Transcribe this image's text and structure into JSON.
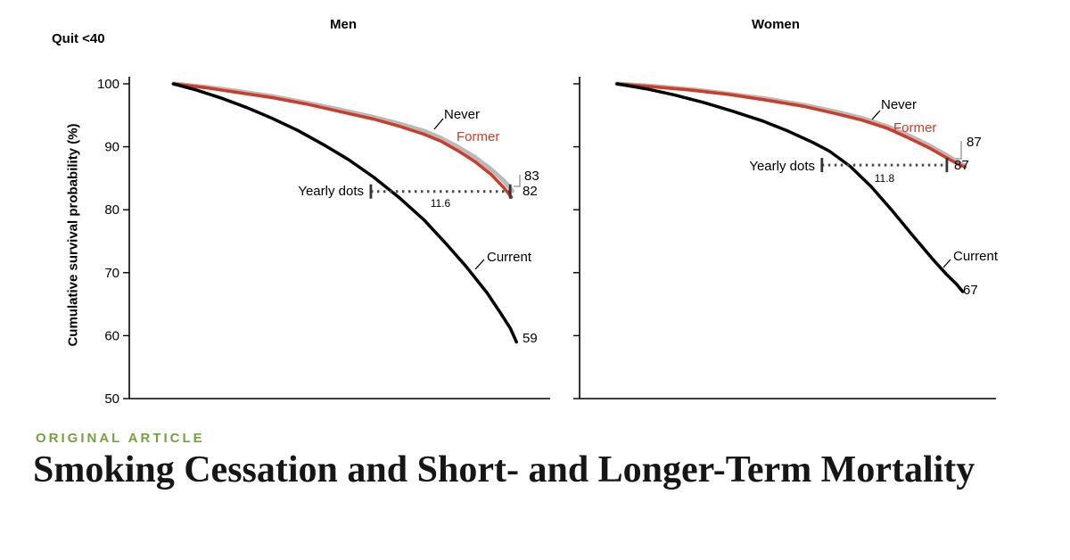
{
  "figure": {
    "subgroup_label": "Quit <40",
    "y_axis_label": "Cumulative survival probability (%)"
  },
  "article": {
    "kicker": "ORIGINAL ARTICLE",
    "title": "Smoking Cessation and Short- and Longer-Term Mortality"
  },
  "colors": {
    "former_red": "#d03a26",
    "never_gray": "#b7babc",
    "current_black": "#000000",
    "kicker_green": "#74a23e",
    "annotation_gray": "#4a4a4a"
  },
  "chart_data": [
    {
      "type": "line",
      "title": "Men",
      "xlabel": "",
      "ylabel": "Cumulative survival probability (%)",
      "ylim": [
        50,
        100
      ],
      "yticks": [
        100,
        90,
        80,
        70,
        60,
        50
      ],
      "grid": false,
      "legend_position": "inline-labels",
      "series": [
        {
          "name": "Never",
          "color": "#b7babc",
          "width": 5,
          "end_value": "83",
          "points": [
            [
              0.105,
              100
            ],
            [
              0.18,
              99.5
            ],
            [
              0.26,
              98.8
            ],
            [
              0.34,
              98.0
            ],
            [
              0.42,
              97.0
            ],
            [
              0.5,
              95.9
            ],
            [
              0.58,
              94.7
            ],
            [
              0.64,
              93.7
            ],
            [
              0.7,
              92.5
            ],
            [
              0.74,
              91.4
            ],
            [
              0.78,
              90.0
            ],
            [
              0.82,
              88.4
            ],
            [
              0.86,
              86.4
            ],
            [
              0.89,
              84.6
            ],
            [
              0.91,
              83
            ]
          ]
        },
        {
          "name": "Former",
          "color": "#d03a26",
          "width": 3.5,
          "end_value": "82",
          "points": [
            [
              0.105,
              100
            ],
            [
              0.18,
              99.4
            ],
            [
              0.26,
              98.6
            ],
            [
              0.34,
              97.8
            ],
            [
              0.42,
              96.8
            ],
            [
              0.5,
              95.6
            ],
            [
              0.58,
              94.4
            ],
            [
              0.64,
              93.3
            ],
            [
              0.7,
              92.0
            ],
            [
              0.74,
              90.9
            ],
            [
              0.78,
              89.4
            ],
            [
              0.82,
              87.7
            ],
            [
              0.86,
              85.6
            ],
            [
              0.89,
              83.5
            ],
            [
              0.908,
              82
            ]
          ]
        },
        {
          "name": "Current",
          "color": "#000000",
          "width": 3.5,
          "end_value": "59",
          "points": [
            [
              0.105,
              100
            ],
            [
              0.16,
              99.0
            ],
            [
              0.22,
              97.7
            ],
            [
              0.28,
              96.2
            ],
            [
              0.34,
              94.5
            ],
            [
              0.4,
              92.6
            ],
            [
              0.46,
              90.4
            ],
            [
              0.52,
              88.0
            ],
            [
              0.58,
              85.2
            ],
            [
              0.64,
              82.0
            ],
            [
              0.7,
              78.4
            ],
            [
              0.75,
              74.8
            ],
            [
              0.8,
              71.0
            ],
            [
              0.85,
              66.8
            ],
            [
              0.88,
              63.8
            ],
            [
              0.905,
              61.2
            ],
            [
              0.92,
              59
            ]
          ]
        }
      ],
      "annotation": {
        "label": "Yearly dots",
        "value": "11.6",
        "y_pct": 82.9,
        "x1": 0.574,
        "x2": 0.905
      }
    },
    {
      "type": "line",
      "title": "Women",
      "xlabel": "",
      "ylabel": "Cumulative survival probability (%)",
      "ylim": [
        50,
        100
      ],
      "yticks": [
        100,
        90,
        80,
        70,
        60,
        50
      ],
      "grid": false,
      "legend_position": "inline-labels",
      "series": [
        {
          "name": "Never",
          "color": "#b7babc",
          "width": 5,
          "end_value": "87",
          "points": [
            [
              0.09,
              100
            ],
            [
              0.18,
              99.6
            ],
            [
              0.27,
              99.1
            ],
            [
              0.36,
              98.4
            ],
            [
              0.45,
              97.6
            ],
            [
              0.54,
              96.6
            ],
            [
              0.62,
              95.5
            ],
            [
              0.68,
              94.5
            ],
            [
              0.74,
              93.2
            ],
            [
              0.79,
              91.8
            ],
            [
              0.84,
              90.2
            ],
            [
              0.88,
              88.7
            ],
            [
              0.91,
              87.5
            ],
            [
              0.925,
              87
            ]
          ]
        },
        {
          "name": "Former",
          "color": "#d03a26",
          "width": 3.5,
          "end_value": "87",
          "points": [
            [
              0.09,
              100
            ],
            [
              0.18,
              99.5
            ],
            [
              0.27,
              99.0
            ],
            [
              0.36,
              98.3
            ],
            [
              0.45,
              97.4
            ],
            [
              0.54,
              96.4
            ],
            [
              0.62,
              95.2
            ],
            [
              0.68,
              94.2
            ],
            [
              0.74,
              92.9
            ],
            [
              0.79,
              91.4
            ],
            [
              0.84,
              89.8
            ],
            [
              0.88,
              88.3
            ],
            [
              0.91,
              87.2
            ],
            [
              0.925,
              86.8
            ]
          ]
        },
        {
          "name": "Current",
          "color": "#000000",
          "width": 3.5,
          "end_value": "67",
          "points": [
            [
              0.09,
              100
            ],
            [
              0.16,
              99.2
            ],
            [
              0.23,
              98.2
            ],
            [
              0.3,
              97.0
            ],
            [
              0.37,
              95.6
            ],
            [
              0.44,
              94.1
            ],
            [
              0.5,
              92.5
            ],
            [
              0.56,
              90.7
            ],
            [
              0.6,
              89.3
            ],
            [
              0.65,
              86.9
            ],
            [
              0.7,
              83.7
            ],
            [
              0.75,
              79.9
            ],
            [
              0.8,
              75.9
            ],
            [
              0.85,
              72.0
            ],
            [
              0.88,
              69.8
            ],
            [
              0.905,
              68.2
            ],
            [
              0.92,
              67
            ]
          ]
        }
      ],
      "annotation": {
        "label": "Yearly dots",
        "value": "11.8",
        "y_pct": 87.1,
        "x1": 0.582,
        "x2": 0.882
      }
    }
  ]
}
